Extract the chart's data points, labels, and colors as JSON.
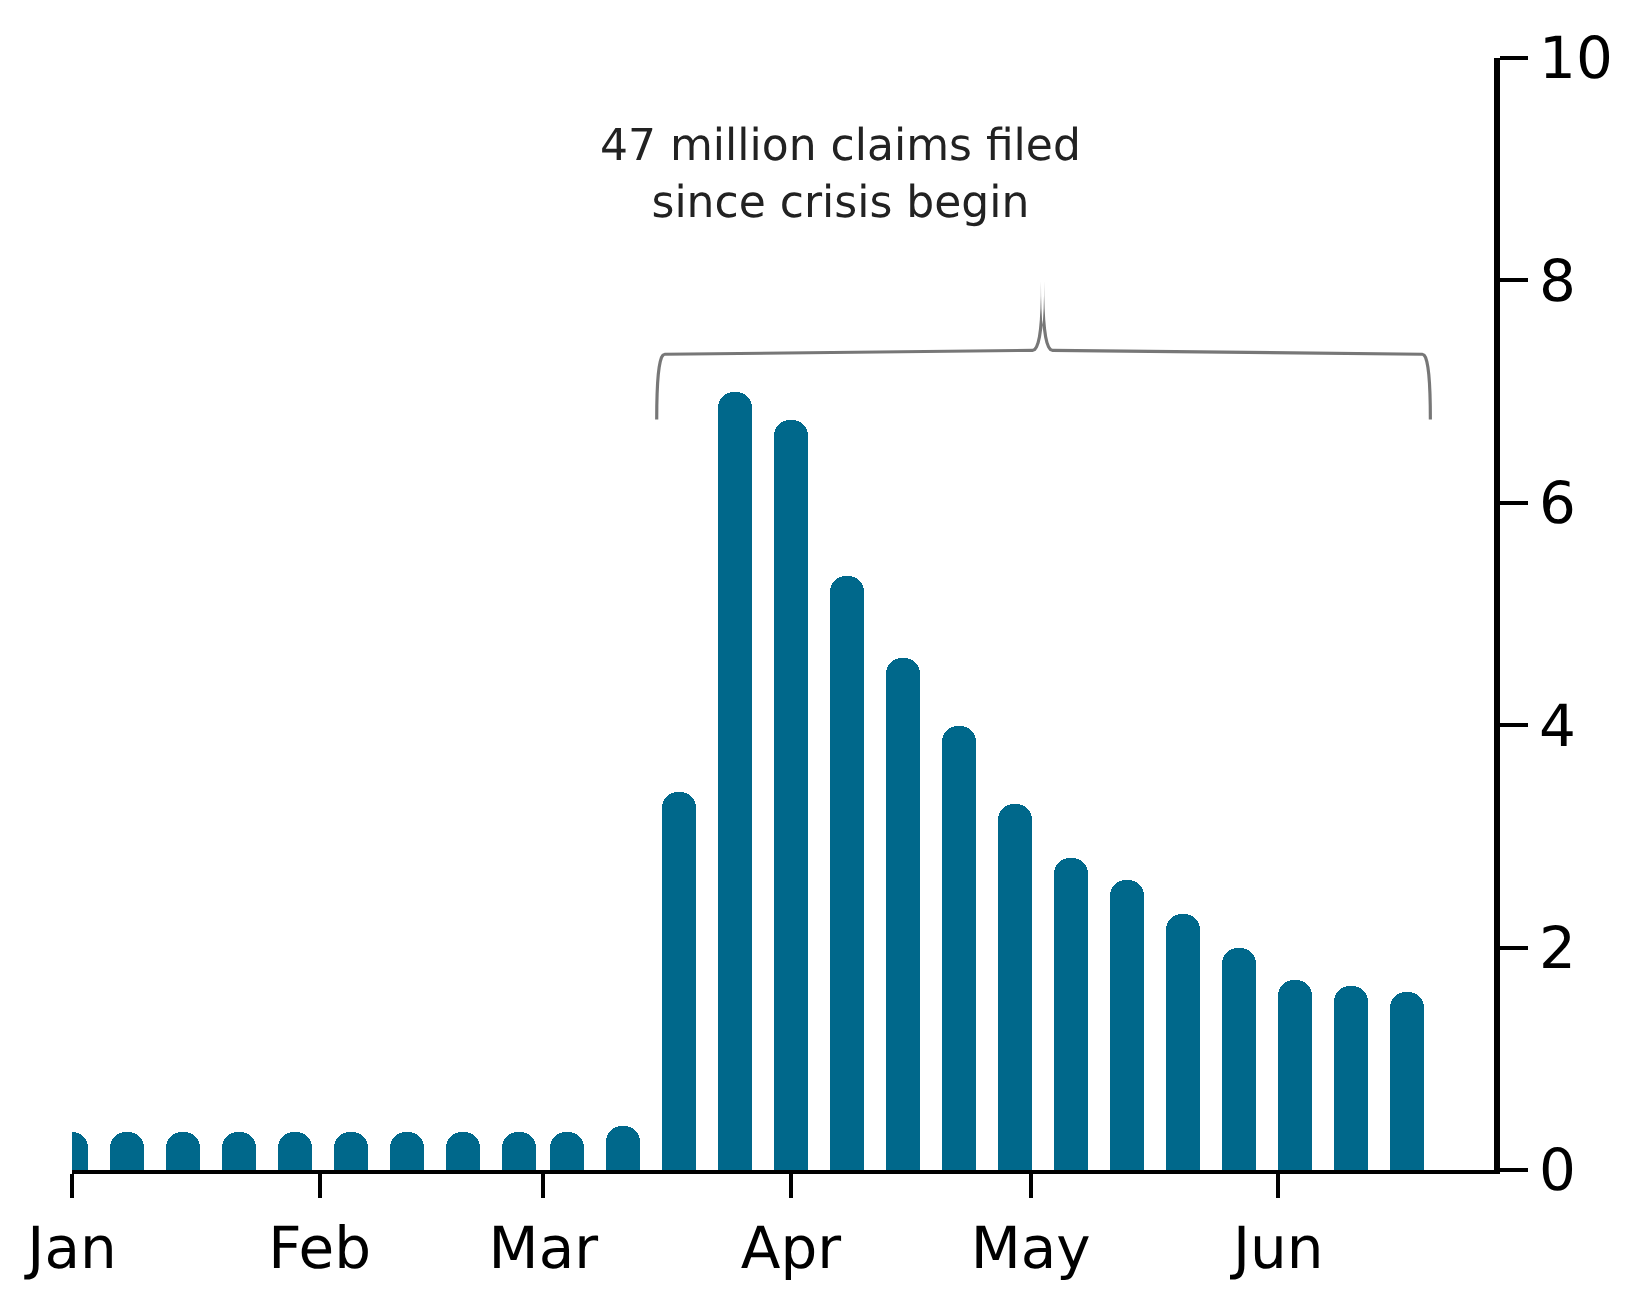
{
  "chart_data": {
    "type": "bar",
    "x": [
      "--01-01",
      "--01-08",
      "--01-15",
      "--01-22",
      "--01-29",
      "--02-05",
      "--02-12",
      "--02-19",
      "--02-26",
      "--03-04",
      "--03-11",
      "--03-18",
      "--03-25",
      "--04-01",
      "--04-08",
      "--04-15",
      "--04-22",
      "--04-29",
      "--05-06",
      "--05-13",
      "--05-20",
      "--05-27",
      "--06-03",
      "--06-10",
      "--06-17"
    ],
    "values": [
      0.35,
      0.35,
      0.35,
      0.35,
      0.35,
      0.35,
      0.35,
      0.35,
      0.35,
      0.35,
      0.4,
      3.4,
      7.0,
      6.75,
      5.35,
      4.6,
      4.0,
      3.3,
      2.8,
      2.6,
      2.3,
      2.0,
      1.7,
      1.65,
      1.6
    ],
    "color": "#00688b",
    "xlim": [
      "--01-01",
      "--06-28"
    ],
    "xticks": [
      {
        "value": "--01-01",
        "label": "Jan"
      },
      {
        "value": "--02-01",
        "label": "Feb"
      },
      {
        "value": "--03-01",
        "label": "Mar"
      },
      {
        "value": "--04-01",
        "label": "Apr"
      },
      {
        "value": "--05-01",
        "label": "May"
      },
      {
        "value": "--06-01",
        "label": "Jun"
      }
    ],
    "ylim": [
      0,
      10
    ],
    "yticks": [
      0,
      2,
      4,
      6,
      8,
      10
    ],
    "annotations": [
      "47 million claims filed\nsince crisis begin"
    ]
  }
}
